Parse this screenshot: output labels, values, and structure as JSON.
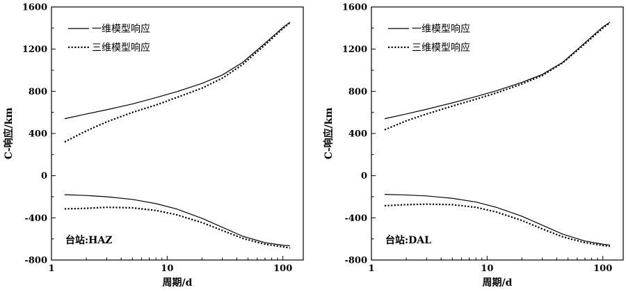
{
  "chart_data": [
    {
      "type": "line",
      "xscale": "log",
      "xlabel": "周期/d",
      "ylabel": "C-响应/km",
      "xlim": [
        1,
        150
      ],
      "ylim": [
        -800,
        1600
      ],
      "xticks": [
        1,
        10,
        100
      ],
      "xtick_labels": [
        "1",
        "10",
        "100"
      ],
      "yticks": [
        -800,
        -400,
        0,
        400,
        800,
        1200,
        1600
      ],
      "ytick_labels": [
        "-800",
        "-400",
        "0",
        "400",
        "800",
        "1200",
        "1600"
      ],
      "station": "台站:HAZ",
      "legend": {
        "position": "top-left",
        "entries": [
          "一维模型响应",
          "三维模型响应"
        ]
      },
      "series": [
        {
          "name": "一维模型响应",
          "style": "solid",
          "group": "real",
          "x": [
            1.3,
            2,
            3,
            5,
            8,
            12,
            20,
            30,
            45,
            70,
            100,
            115
          ],
          "y": [
            540,
            585,
            625,
            680,
            740,
            795,
            875,
            955,
            1075,
            1255,
            1405,
            1455
          ]
        },
        {
          "name": "三维模型响应",
          "style": "dotted",
          "group": "real",
          "x": [
            1.3,
            2,
            3,
            5,
            8,
            12,
            20,
            30,
            45,
            70,
            100,
            115
          ],
          "y": [
            320,
            425,
            510,
            600,
            670,
            740,
            830,
            925,
            1055,
            1240,
            1395,
            1450
          ]
        },
        {
          "name": "一维模型响应",
          "style": "solid",
          "group": "imag",
          "x": [
            1.3,
            2,
            3,
            5,
            8,
            12,
            20,
            30,
            45,
            70,
            100,
            115
          ],
          "y": [
            -180,
            -188,
            -200,
            -225,
            -265,
            -315,
            -405,
            -490,
            -575,
            -635,
            -660,
            -665
          ]
        },
        {
          "name": "三维模型响应",
          "style": "dotted",
          "group": "imag",
          "x": [
            1.3,
            2,
            3,
            5,
            8,
            12,
            20,
            30,
            45,
            70,
            100,
            115
          ],
          "y": [
            -315,
            -310,
            -300,
            -305,
            -330,
            -370,
            -445,
            -520,
            -595,
            -650,
            -675,
            -685
          ]
        }
      ]
    },
    {
      "type": "line",
      "xscale": "log",
      "xlabel": "周期/d",
      "ylabel": "C-响应/km",
      "xlim": [
        1,
        150
      ],
      "ylim": [
        -800,
        1600
      ],
      "xticks": [
        1,
        10,
        100
      ],
      "xtick_labels": [
        "1",
        "10",
        "100"
      ],
      "yticks": [
        -800,
        -400,
        0,
        400,
        800,
        1200,
        1600
      ],
      "ytick_labels": [
        "-800",
        "-400",
        "0",
        "400",
        "800",
        "1200",
        "1600"
      ],
      "station": "台站:DAL",
      "legend": {
        "position": "top-left",
        "entries": [
          "一维模型响应",
          "三维模型响应"
        ]
      },
      "series": [
        {
          "name": "一维模型响应",
          "style": "solid",
          "group": "real",
          "x": [
            1.3,
            2,
            3,
            5,
            8,
            12,
            20,
            30,
            45,
            70,
            100,
            115
          ],
          "y": [
            540,
            585,
            630,
            690,
            750,
            805,
            885,
            960,
            1075,
            1260,
            1410,
            1455
          ]
        },
        {
          "name": "三维模型响应",
          "style": "dotted",
          "group": "real",
          "x": [
            1.3,
            2,
            3,
            5,
            8,
            12,
            20,
            30,
            45,
            70,
            100,
            115
          ],
          "y": [
            435,
            520,
            585,
            660,
            725,
            785,
            870,
            950,
            1070,
            1250,
            1400,
            1450
          ]
        },
        {
          "name": "一维模型响应",
          "style": "solid",
          "group": "imag",
          "x": [
            1.3,
            2,
            3,
            5,
            8,
            12,
            20,
            30,
            45,
            70,
            100,
            115
          ],
          "y": [
            -178,
            -183,
            -192,
            -215,
            -250,
            -300,
            -385,
            -470,
            -555,
            -620,
            -650,
            -658
          ]
        },
        {
          "name": "三维模型响应",
          "style": "dotted",
          "group": "imag",
          "x": [
            1.3,
            2,
            3,
            5,
            8,
            12,
            20,
            30,
            45,
            70,
            100,
            115
          ],
          "y": [
            -285,
            -275,
            -270,
            -275,
            -300,
            -345,
            -425,
            -505,
            -580,
            -635,
            -662,
            -670
          ]
        }
      ]
    }
  ]
}
